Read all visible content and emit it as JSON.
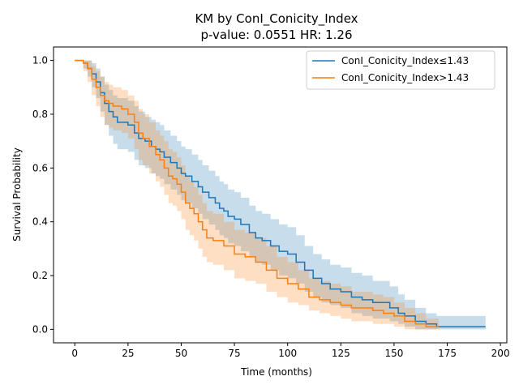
{
  "chart_data": {
    "type": "line",
    "title": "KM by ConI_Conicity_Index",
    "subtitle": "p-value: 0.0551  HR: 1.26",
    "xlabel": "Time (months)",
    "ylabel": "Survival Probability",
    "xlim": [
      -10,
      203
    ],
    "ylim": [
      -0.05,
      1.05
    ],
    "xticks": [
      0,
      25,
      50,
      75,
      100,
      125,
      150,
      175,
      200
    ],
    "yticks": [
      0.0,
      0.2,
      0.4,
      0.6,
      0.8,
      1.0
    ],
    "xtick_labels": [
      "0",
      "25",
      "50",
      "75",
      "100",
      "125",
      "150",
      "175",
      "200"
    ],
    "ytick_labels": [
      "0.0",
      "0.2",
      "0.4",
      "0.6",
      "0.8",
      "1.0"
    ],
    "grid": false,
    "legend_position": "top-right",
    "series": [
      {
        "name": "ConI_Conicity_Index≤1.43",
        "color": "#1f77b4",
        "x": [
          0,
          4,
          6,
          8,
          10,
          12,
          14,
          16,
          18,
          20,
          25,
          28,
          30,
          33,
          36,
          38,
          40,
          42,
          45,
          48,
          50,
          52,
          55,
          58,
          60,
          63,
          66,
          68,
          70,
          72,
          75,
          78,
          82,
          85,
          88,
          92,
          96,
          100,
          104,
          108,
          112,
          116,
          120,
          125,
          130,
          135,
          140,
          148,
          152,
          155,
          160,
          165,
          170,
          193
        ],
        "y": [
          1.0,
          0.99,
          0.97,
          0.95,
          0.92,
          0.88,
          0.84,
          0.81,
          0.79,
          0.77,
          0.76,
          0.73,
          0.71,
          0.7,
          0.68,
          0.67,
          0.66,
          0.64,
          0.62,
          0.6,
          0.58,
          0.57,
          0.55,
          0.53,
          0.51,
          0.49,
          0.47,
          0.45,
          0.44,
          0.42,
          0.41,
          0.39,
          0.36,
          0.34,
          0.33,
          0.31,
          0.29,
          0.28,
          0.25,
          0.22,
          0.19,
          0.17,
          0.15,
          0.14,
          0.12,
          0.11,
          0.1,
          0.08,
          0.06,
          0.05,
          0.03,
          0.02,
          0.01,
          0.01
        ],
        "ci_low": [
          1.0,
          0.97,
          0.94,
          0.9,
          0.86,
          0.81,
          0.76,
          0.72,
          0.69,
          0.67,
          0.66,
          0.63,
          0.61,
          0.6,
          0.58,
          0.57,
          0.56,
          0.54,
          0.52,
          0.5,
          0.48,
          0.47,
          0.45,
          0.43,
          0.41,
          0.39,
          0.37,
          0.35,
          0.34,
          0.32,
          0.31,
          0.29,
          0.27,
          0.25,
          0.24,
          0.22,
          0.2,
          0.19,
          0.17,
          0.14,
          0.12,
          0.1,
          0.09,
          0.08,
          0.06,
          0.05,
          0.04,
          0.03,
          0.02,
          0.01,
          0.0,
          0.0,
          0.0,
          0.0
        ],
        "ci_high": [
          1.0,
          1.0,
          1.0,
          0.99,
          0.97,
          0.94,
          0.91,
          0.89,
          0.87,
          0.86,
          0.85,
          0.83,
          0.81,
          0.79,
          0.78,
          0.77,
          0.76,
          0.74,
          0.72,
          0.7,
          0.68,
          0.67,
          0.65,
          0.63,
          0.61,
          0.59,
          0.57,
          0.55,
          0.54,
          0.52,
          0.51,
          0.49,
          0.46,
          0.44,
          0.43,
          0.41,
          0.39,
          0.38,
          0.35,
          0.31,
          0.28,
          0.26,
          0.24,
          0.23,
          0.21,
          0.2,
          0.18,
          0.16,
          0.13,
          0.11,
          0.08,
          0.06,
          0.05,
          0.05
        ]
      },
      {
        "name": "ConI_Conicity_Index>1.43",
        "color": "#ff7f0e",
        "x": [
          0,
          4,
          6,
          8,
          10,
          12,
          14,
          16,
          18,
          20,
          22,
          25,
          28,
          30,
          32,
          35,
          38,
          40,
          42,
          44,
          46,
          48,
          50,
          52,
          54,
          56,
          58,
          60,
          62,
          65,
          70,
          75,
          80,
          85,
          90,
          95,
          100,
          105,
          110,
          115,
          120,
          125,
          130,
          140,
          145,
          150,
          155,
          160,
          165,
          171
        ],
        "y": [
          1.0,
          0.99,
          0.97,
          0.93,
          0.9,
          0.87,
          0.85,
          0.84,
          0.83,
          0.83,
          0.82,
          0.8,
          0.77,
          0.73,
          0.71,
          0.68,
          0.65,
          0.63,
          0.6,
          0.57,
          0.56,
          0.54,
          0.51,
          0.47,
          0.45,
          0.43,
          0.4,
          0.37,
          0.34,
          0.33,
          0.31,
          0.28,
          0.27,
          0.25,
          0.22,
          0.19,
          0.17,
          0.15,
          0.12,
          0.11,
          0.1,
          0.09,
          0.08,
          0.07,
          0.06,
          0.05,
          0.03,
          0.02,
          0.01,
          0.01
        ],
        "ci_low": [
          1.0,
          0.96,
          0.92,
          0.87,
          0.83,
          0.79,
          0.76,
          0.75,
          0.74,
          0.74,
          0.73,
          0.71,
          0.67,
          0.63,
          0.61,
          0.58,
          0.55,
          0.53,
          0.5,
          0.47,
          0.46,
          0.44,
          0.41,
          0.37,
          0.35,
          0.33,
          0.3,
          0.27,
          0.25,
          0.24,
          0.22,
          0.19,
          0.18,
          0.17,
          0.14,
          0.12,
          0.1,
          0.09,
          0.07,
          0.06,
          0.05,
          0.04,
          0.03,
          0.02,
          0.02,
          0.01,
          0.0,
          0.0,
          0.0,
          0.0
        ],
        "ci_high": [
          1.0,
          1.0,
          1.0,
          0.98,
          0.96,
          0.94,
          0.92,
          0.91,
          0.9,
          0.9,
          0.89,
          0.87,
          0.85,
          0.82,
          0.8,
          0.77,
          0.74,
          0.72,
          0.7,
          0.67,
          0.66,
          0.64,
          0.61,
          0.57,
          0.55,
          0.53,
          0.5,
          0.47,
          0.44,
          0.43,
          0.4,
          0.37,
          0.36,
          0.34,
          0.31,
          0.27,
          0.25,
          0.22,
          0.19,
          0.18,
          0.17,
          0.16,
          0.14,
          0.13,
          0.12,
          0.1,
          0.08,
          0.06,
          0.04,
          0.04
        ]
      }
    ]
  }
}
